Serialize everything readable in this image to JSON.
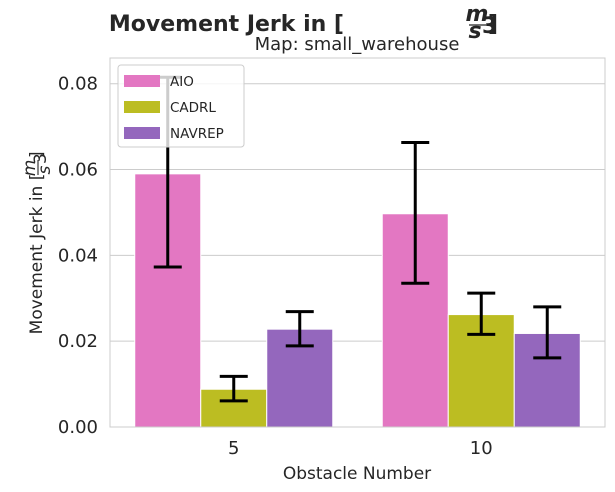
{
  "chart_data": {
    "type": "bar",
    "title_main": "Movement Jerk in [",
    "title_unit_num": "m",
    "title_unit_den": "s",
    "title_unit_exp": "3",
    "title_close": "]",
    "subtitle": "Map: small_warehouse",
    "xlabel": "Obstacle Number",
    "ylabel_main": "Movement Jerk in [",
    "categories": [
      "5",
      "10"
    ],
    "ylim": [
      0,
      0.086
    ],
    "yticks": [
      "0.00",
      "0.02",
      "0.04",
      "0.06",
      "0.08"
    ],
    "ytick_values": [
      0,
      0.02,
      0.04,
      0.06,
      0.08
    ],
    "grid": true,
    "legend_position": "top-left",
    "series": [
      {
        "name": "AIO",
        "color": "#e377c2",
        "values": [
          0.059,
          0.0497
        ],
        "err_low": [
          0.0373,
          0.0335
        ],
        "err_high": [
          0.0815,
          0.0663
        ]
      },
      {
        "name": "CADRL",
        "color": "#bcbd22",
        "values": [
          0.0088,
          0.0262
        ],
        "err_low": [
          0.0061,
          0.0216
        ],
        "err_high": [
          0.0118,
          0.0312
        ]
      },
      {
        "name": "NAVREP",
        "color": "#9467bd",
        "values": [
          0.0228,
          0.0218
        ],
        "err_low": [
          0.0189,
          0.0161
        ],
        "err_high": [
          0.0269,
          0.028
        ]
      }
    ]
  }
}
